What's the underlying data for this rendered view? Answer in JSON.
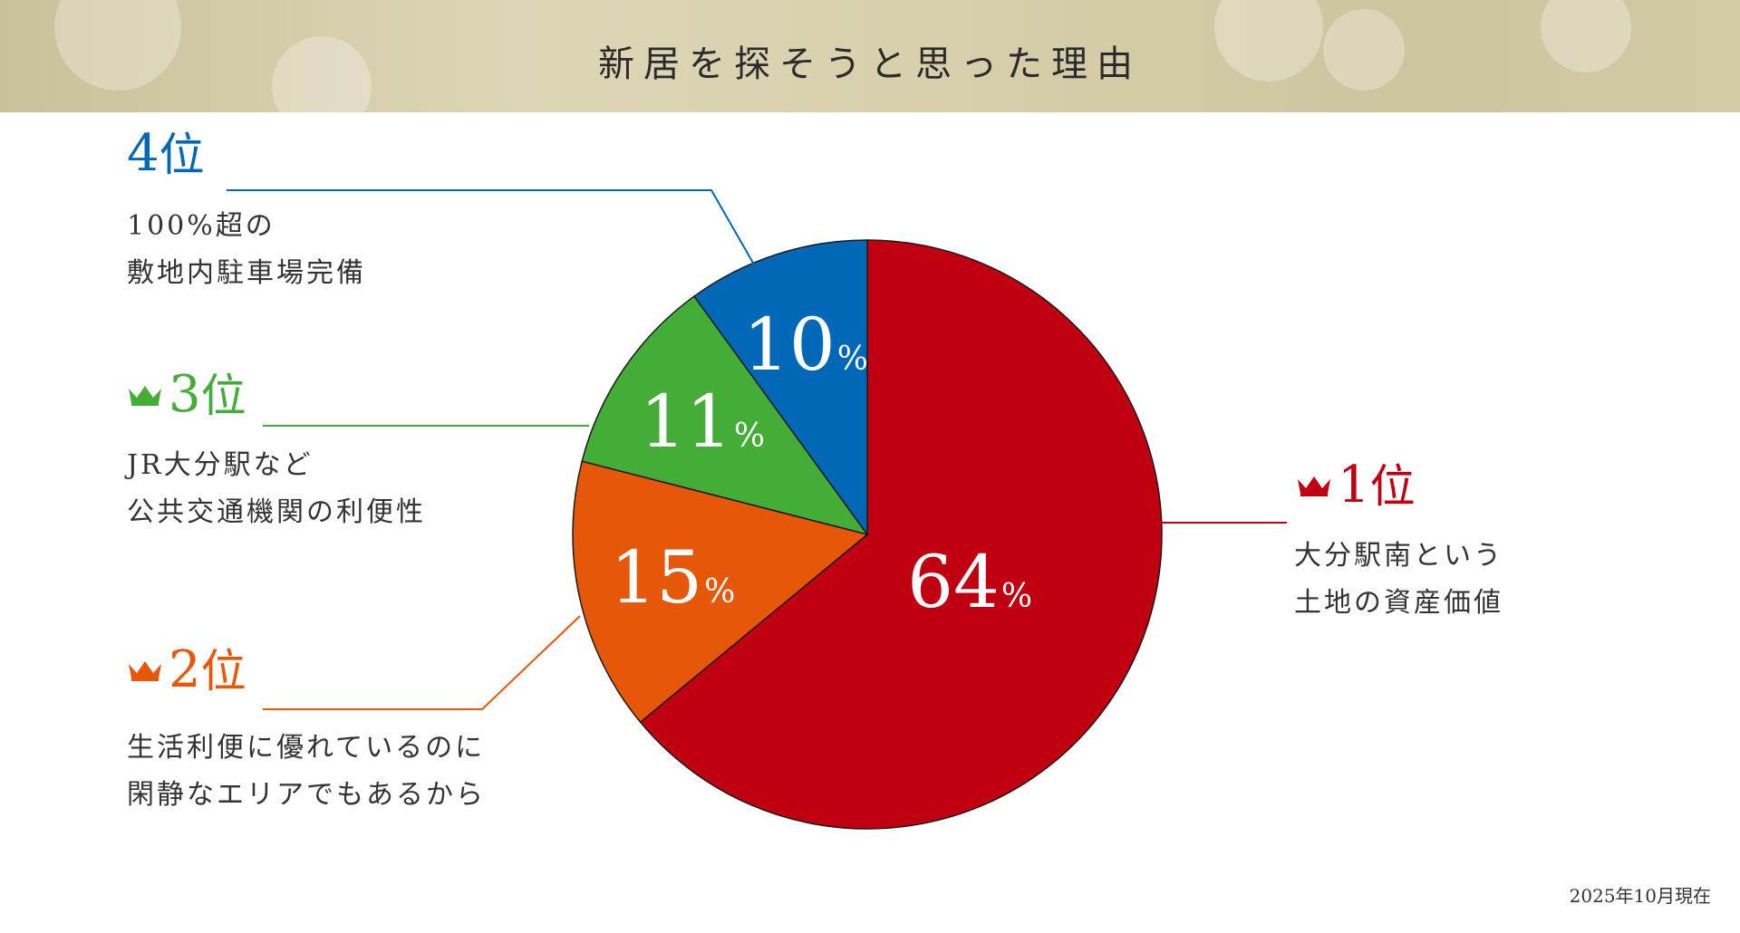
{
  "header": {
    "title": "新居を探そうと思った理由"
  },
  "note": "2025年10月現在",
  "colors": {
    "red": "#c00010",
    "orange": "#e65709",
    "green": "#44ad37",
    "blue": "#0068b6"
  },
  "chart_data": {
    "type": "pie",
    "title": "新居を探そうと思った理由",
    "slices": [
      {
        "rank_num": "1",
        "rank_suffix": "位",
        "value": 64,
        "pct_label": "64",
        "desc_line1": "大分駅南という",
        "desc_line2": "土地の資産価値",
        "color": "#c00010",
        "crown": true
      },
      {
        "rank_num": "2",
        "rank_suffix": "位",
        "value": 15,
        "pct_label": "15",
        "desc_line1": "生活利便に優れているのに",
        "desc_line2": "閑静なエリアでもあるから",
        "color": "#e65709",
        "crown": true
      },
      {
        "rank_num": "3",
        "rank_suffix": "位",
        "value": 11,
        "pct_label": "11",
        "desc_line1": "JR大分駅など",
        "desc_line2": "公共交通機関の利便性",
        "color": "#44ad37",
        "crown": true
      },
      {
        "rank_num": "4",
        "rank_suffix": "位",
        "value": 10,
        "pct_label": "10",
        "desc_line1": "100%超の",
        "desc_line2": "敷地内駐車場完備",
        "color": "#0068b6",
        "crown": false
      }
    ],
    "percent_sign": "%"
  }
}
